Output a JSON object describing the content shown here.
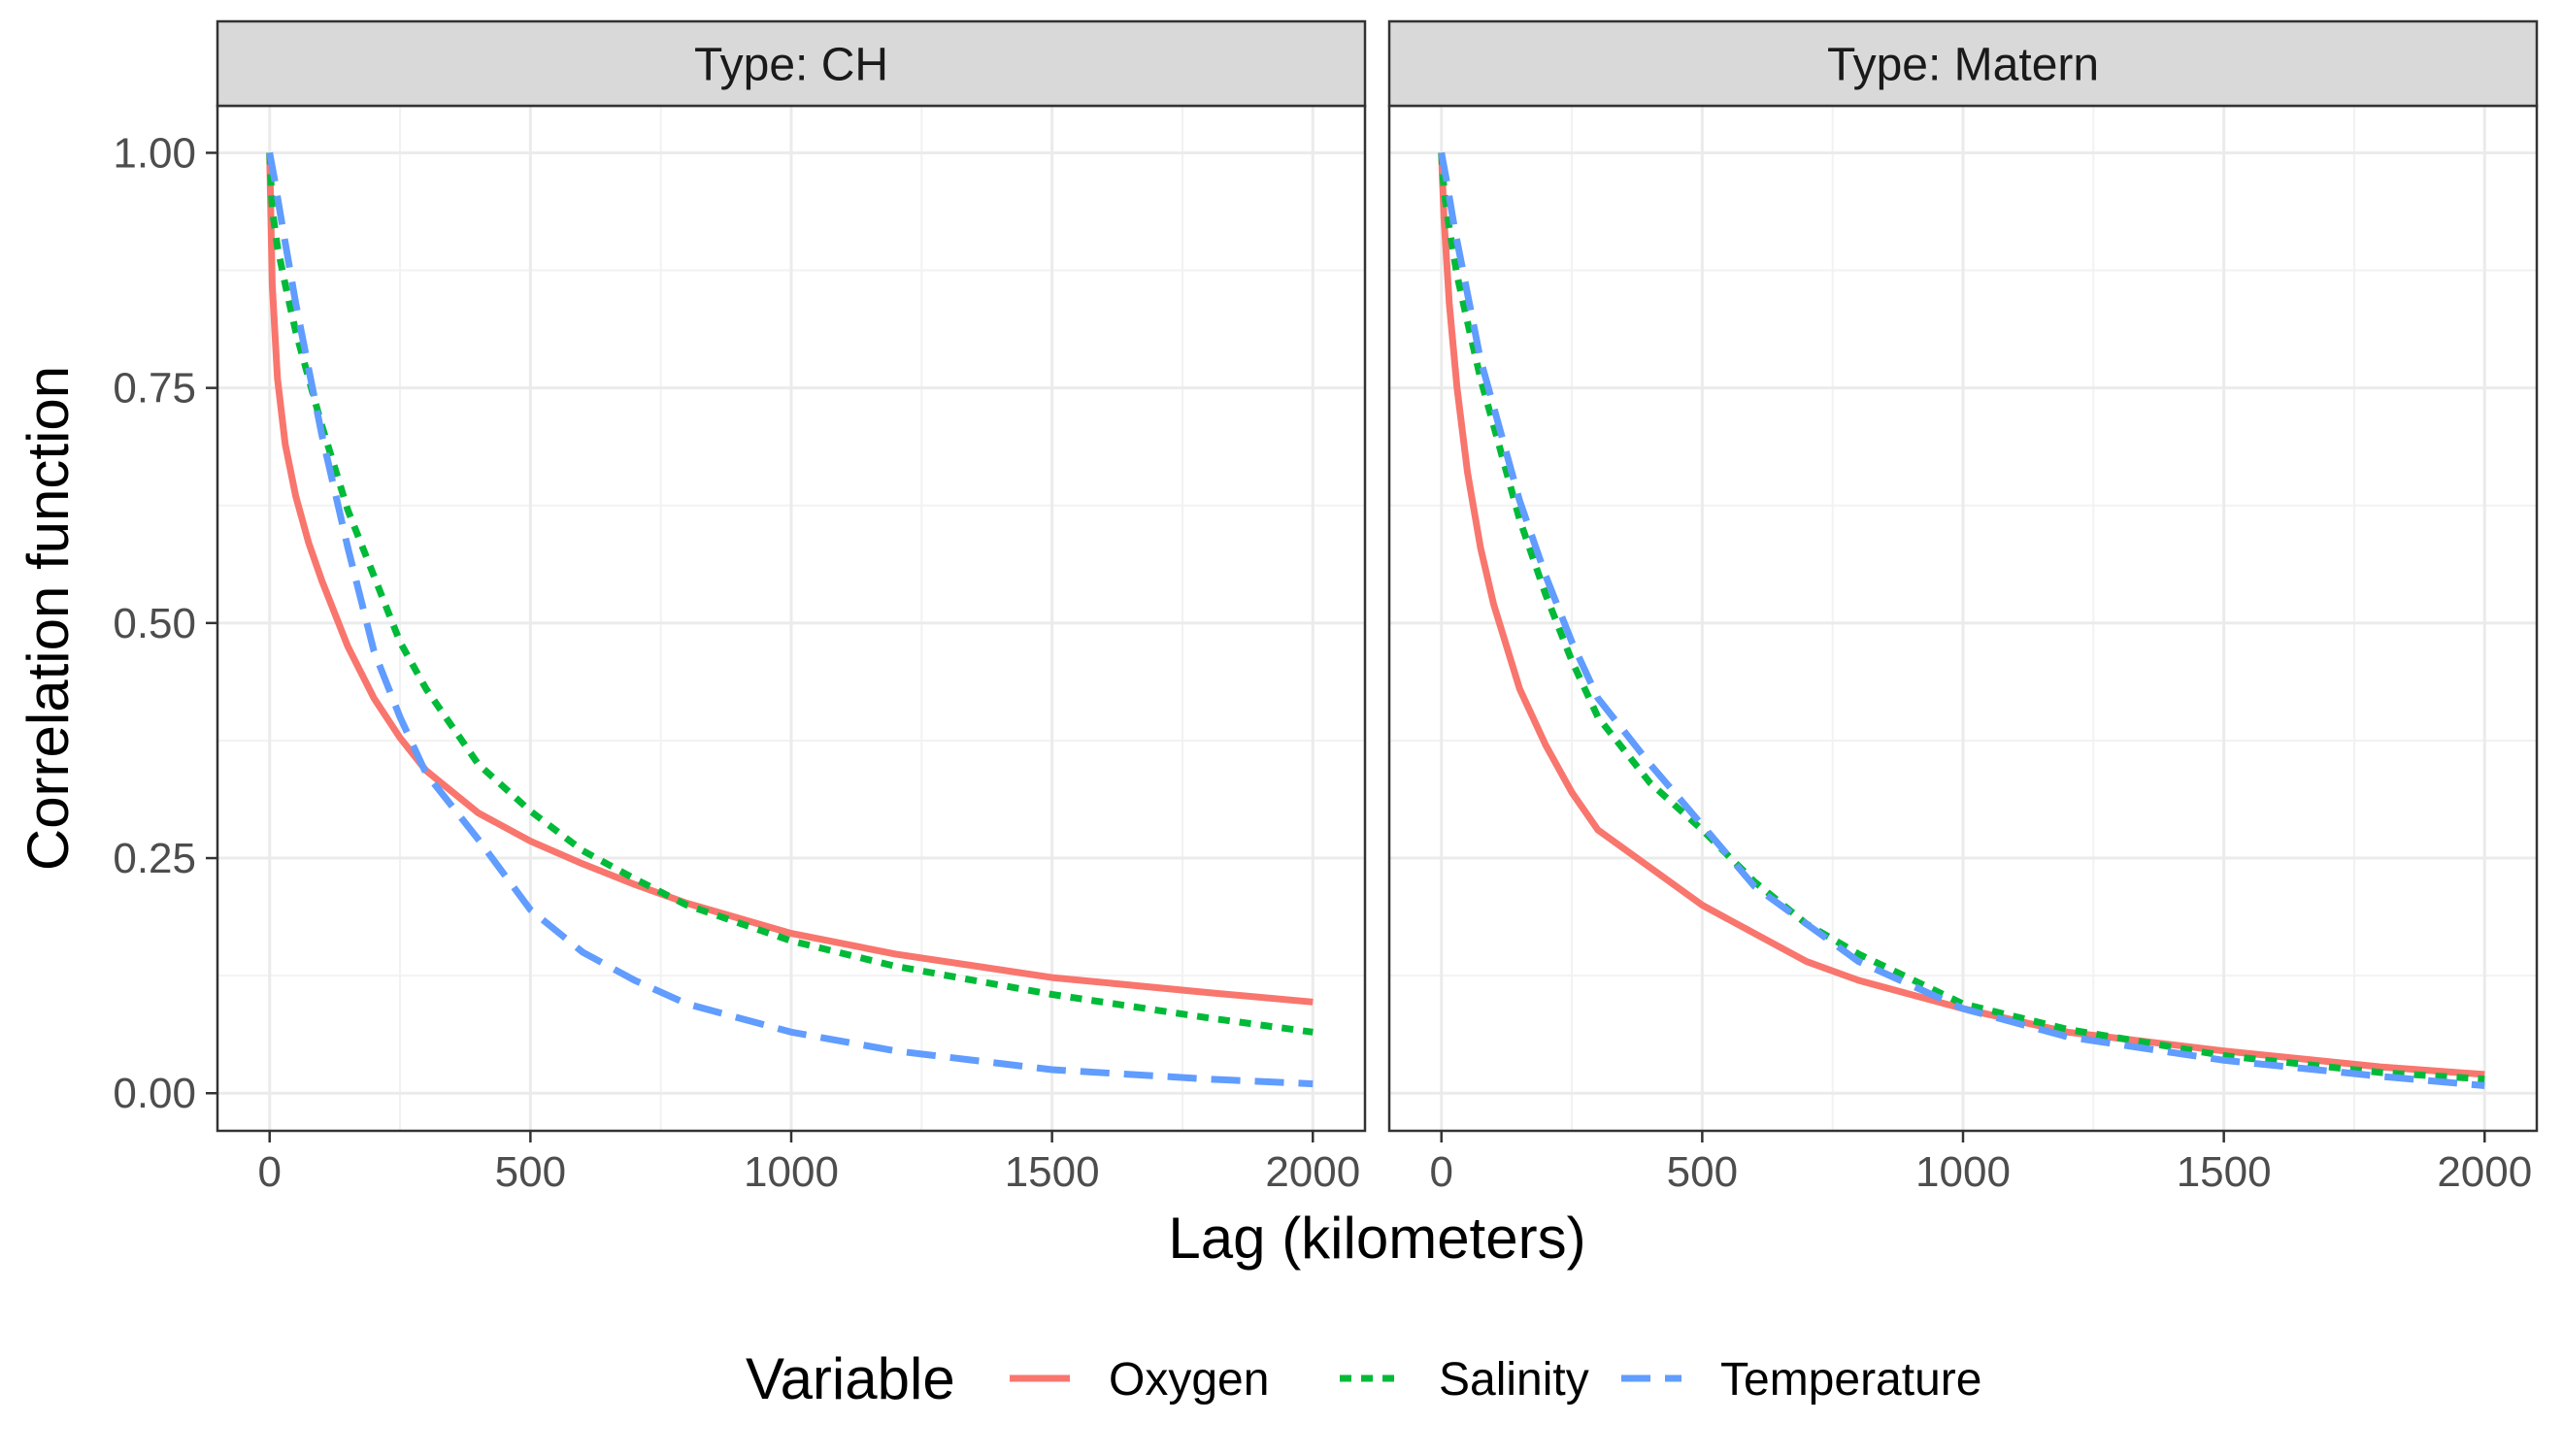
{
  "chart_data": {
    "type": "line",
    "xlabel": "Lag (kilometers)",
    "ylabel": "Correlation function",
    "xlim": [
      -100,
      2100
    ],
    "ylim": [
      -0.04,
      1.05
    ],
    "x_ticks": [
      0,
      500,
      1000,
      1500,
      2000
    ],
    "x_tick_labels": [
      "0",
      "500",
      "1000",
      "1500",
      "2000"
    ],
    "y_ticks": [
      0,
      0.25,
      0.5,
      0.75,
      1.0
    ],
    "y_tick_labels": [
      "0.00",
      "0.25",
      "0.50",
      "0.75",
      "1.00"
    ],
    "grid": true,
    "legend": {
      "title": "Variable",
      "position": "bottom",
      "entries": [
        {
          "label": "Oxygen",
          "color": "#F8766D",
          "dash": "solid"
        },
        {
          "label": "Salinity",
          "color": "#00BA38",
          "dash": "dotted"
        },
        {
          "label": "Temperature",
          "color": "#619CFF",
          "dash": "dashed"
        }
      ]
    },
    "panels": [
      {
        "title": "Type: CH",
        "series": [
          {
            "name": "Oxygen",
            "x": [
              0,
              5,
              15,
              30,
              50,
              75,
              100,
              150,
              200,
              250,
              300,
              400,
              500,
              600,
              700,
              800,
              1000,
              1200,
              1500,
              1800,
              2000
            ],
            "y": [
              1.0,
              0.86,
              0.76,
              0.69,
              0.635,
              0.585,
              0.545,
              0.475,
              0.42,
              0.378,
              0.343,
              0.298,
              0.268,
              0.244,
              0.222,
              0.202,
              0.17,
              0.148,
              0.123,
              0.107,
              0.097
            ]
          },
          {
            "name": "Salinity",
            "x": [
              0,
              5,
              15,
              30,
              50,
              75,
              100,
              150,
              200,
              250,
              300,
              400,
              500,
              600,
              700,
              800,
              1000,
              1200,
              1500,
              1800,
              2000
            ],
            "y": [
              1.0,
              0.94,
              0.9,
              0.86,
              0.81,
              0.76,
              0.71,
              0.62,
              0.55,
              0.48,
              0.43,
              0.35,
              0.3,
              0.258,
              0.228,
              0.2,
              0.162,
              0.135,
              0.105,
              0.08,
              0.065
            ]
          },
          {
            "name": "Temperature",
            "x": [
              0,
              10,
              25,
              50,
              75,
              100,
              150,
              200,
              250,
              300,
              400,
              500,
              600,
              700,
              800,
              1000,
              1200,
              1500,
              1800,
              2000
            ],
            "y": [
              1.0,
              0.97,
              0.92,
              0.84,
              0.77,
              0.7,
              0.58,
              0.47,
              0.4,
              0.34,
              0.27,
              0.195,
              0.15,
              0.12,
              0.095,
              0.065,
              0.045,
              0.025,
              0.015,
              0.01
            ]
          }
        ]
      },
      {
        "title": "Type: Matern",
        "series": [
          {
            "name": "Oxygen",
            "x": [
              0,
              5,
              15,
              30,
              50,
              75,
              100,
              150,
              200,
              250,
              300,
              400,
              500,
              600,
              700,
              800,
              1000,
              1200,
              1500,
              1800,
              2000
            ],
            "y": [
              1.0,
              0.93,
              0.84,
              0.75,
              0.66,
              0.58,
              0.52,
              0.43,
              0.37,
              0.32,
              0.28,
              0.24,
              0.2,
              0.17,
              0.14,
              0.12,
              0.09,
              0.065,
              0.045,
              0.028,
              0.02
            ]
          },
          {
            "name": "Salinity",
            "x": [
              0,
              5,
              15,
              30,
              50,
              75,
              100,
              150,
              200,
              250,
              300,
              400,
              500,
              600,
              700,
              800,
              1000,
              1200,
              1500,
              1800,
              2000
            ],
            "y": [
              1.0,
              0.96,
              0.92,
              0.87,
              0.82,
              0.76,
              0.71,
              0.61,
              0.53,
              0.46,
              0.4,
              0.33,
              0.28,
              0.225,
              0.18,
              0.148,
              0.095,
              0.068,
              0.04,
              0.022,
              0.015
            ]
          },
          {
            "name": "Temperature",
            "x": [
              0,
              10,
              25,
              50,
              75,
              100,
              150,
              200,
              250,
              300,
              400,
              500,
              600,
              700,
              800,
              1000,
              1200,
              1500,
              1800,
              2000
            ],
            "y": [
              1.0,
              0.97,
              0.92,
              0.85,
              0.78,
              0.73,
              0.63,
              0.55,
              0.48,
              0.42,
              0.35,
              0.285,
              0.22,
              0.18,
              0.14,
              0.09,
              0.06,
              0.035,
              0.018,
              0.008
            ]
          }
        ]
      }
    ]
  }
}
